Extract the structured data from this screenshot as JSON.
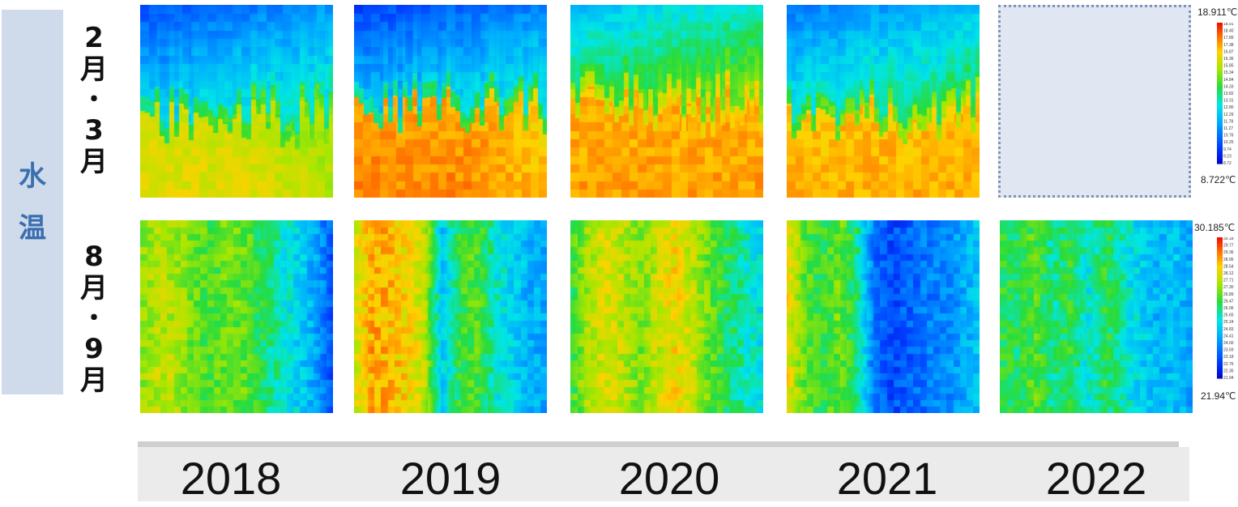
{
  "side_label": [
    "水",
    "温"
  ],
  "row_labels": {
    "winter": [
      "2",
      "月",
      "・",
      "3",
      "月"
    ],
    "summer": [
      "8",
      "月",
      "・",
      "9",
      "月"
    ]
  },
  "chart_data": [
    {
      "type": "heatmap",
      "row": "2月・3月",
      "years": [
        "2018",
        "2019",
        "2020",
        "2021",
        "2022"
      ],
      "colorbar": {
        "max_label": "18.911℃",
        "min_label": "8.722℃",
        "min": 8.722,
        "max": 18.911
      },
      "panels_with_data": [
        true,
        true,
        true,
        true,
        false
      ]
    },
    {
      "type": "heatmap",
      "row": "8月・9月",
      "years": [
        "2018",
        "2019",
        "2020",
        "2021",
        "2022"
      ],
      "colorbar": {
        "max_label": "30.185℃",
        "min_label": "21.94℃",
        "min": 21.94,
        "max": 30.185
      },
      "panels_with_data": [
        true,
        true,
        true,
        true,
        true
      ]
    }
  ],
  "years": [
    "2018",
    "2019",
    "2020",
    "2021",
    "2022"
  ]
}
